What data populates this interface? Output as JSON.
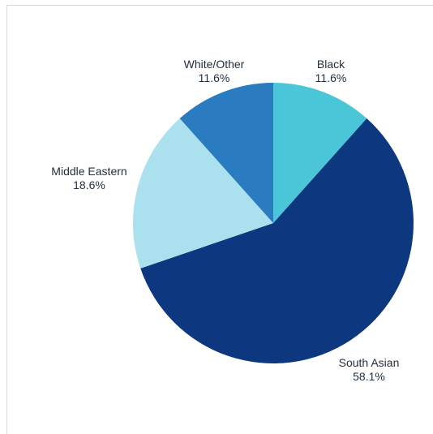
{
  "chart_data": {
    "type": "pie",
    "title": "",
    "start_angle_deg": 0,
    "direction": "clockwise",
    "legend": "none",
    "slices": [
      {
        "label": "Black",
        "value": 11.6,
        "value_label": "11.6%",
        "color": "#4bc6d8"
      },
      {
        "label": "South Asian",
        "value": 58.1,
        "value_label": "58.1%",
        "color": "#0d3880"
      },
      {
        "label": "Middle Eastern",
        "value": 18.6,
        "value_label": "18.6%",
        "color": "#abe0ef"
      },
      {
        "label": "White/Other",
        "value": 11.6,
        "value_label": "11.6%",
        "color": "#2b7bc0"
      }
    ]
  }
}
